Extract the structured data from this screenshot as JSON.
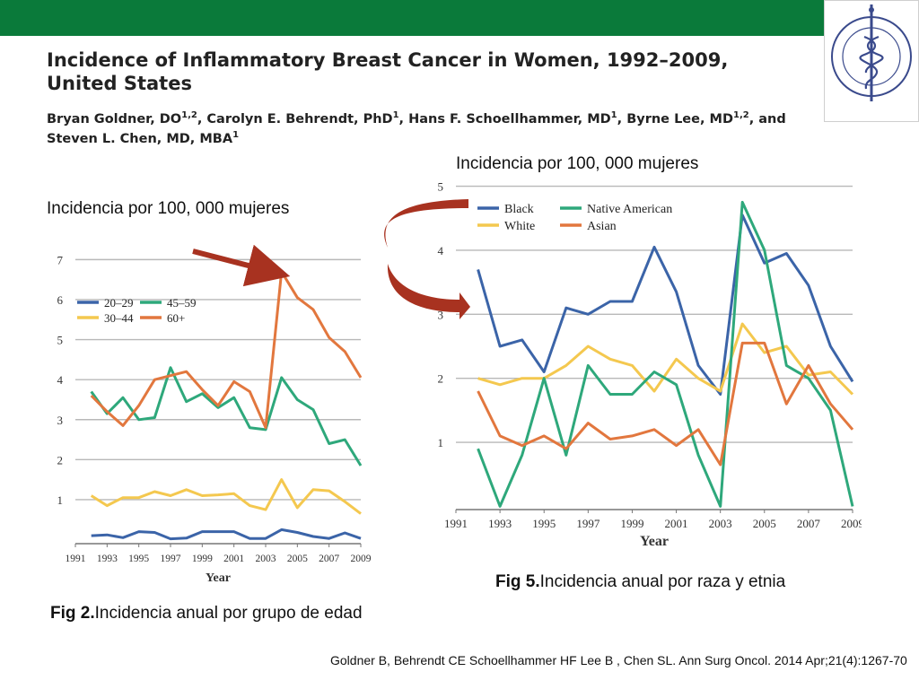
{
  "header": {
    "title_line1": "Incidence of Inflammatory Breast Cancer in Women, 1992–2009,",
    "title_line2": "United States",
    "authors": [
      {
        "name": "Bryan Goldner, DO",
        "sup": "1,2",
        "sep": ", "
      },
      {
        "name": "Carolyn E. Behrendt, PhD",
        "sup": "1",
        "sep": ", "
      },
      {
        "name": "Hans F. Schoellhammer, MD",
        "sup": "1",
        "sep": ", "
      },
      {
        "name": "Byrne Lee, MD",
        "sup": "1,2",
        "sep": ", and "
      },
      {
        "name": "Steven L. Chen, MD, MBA",
        "sup": "1",
        "sep": ""
      }
    ],
    "colors": {
      "top_bar": "#0a7a3a"
    }
  },
  "logo": {
    "icon": "caduceus-seal-icon",
    "text": "INSTITUTO NACIONAL DE CANCEROLOGIA · México ·"
  },
  "left_panel": {
    "ylabel_text": "Incidencia por 100, 000 mujeres",
    "caption_bold": "Fig 2.",
    "caption_text": "Incidencia anual por grupo de edad"
  },
  "right_panel": {
    "ylabel_text": "Incidencia por 100, 000 mujeres",
    "caption_bold": "Fig 5.",
    "caption_text": "Incidencia anual por raza y etnia"
  },
  "reference": "Goldner B, Behrendt CE Schoellhammer HF Lee B , Chen SL. Ann Surg Oncol. 2014 Apr;21(4):1267-70",
  "chart_data": [
    {
      "type": "line",
      "xlabel": "Year",
      "ylabel": "",
      "xticks": [
        1991,
        1993,
        1995,
        1997,
        1999,
        2001,
        2003,
        2005,
        2007,
        2009
      ],
      "yticks": [
        1,
        2,
        3,
        4,
        5,
        6,
        7
      ],
      "xlim": [
        1991,
        2009
      ],
      "ylim": [
        -0.1,
        7.3
      ],
      "grid": true,
      "legend_position": "top-left",
      "x": [
        1992,
        1993,
        1994,
        1995,
        1996,
        1997,
        1998,
        1999,
        2000,
        2001,
        2002,
        2003,
        2004,
        2005,
        2006,
        2007,
        2008,
        2009
      ],
      "series": [
        {
          "name": "20–29",
          "color": "#3b64a8",
          "values": [
            0.1,
            0.12,
            0.05,
            0.2,
            0.18,
            0.02,
            0.04,
            0.2,
            0.2,
            0.2,
            0.03,
            0.03,
            0.25,
            0.18,
            0.08,
            0.03,
            0.17,
            0.03
          ]
        },
        {
          "name": "45–59",
          "color": "#2ea87b",
          "values": [
            3.7,
            3.15,
            3.55,
            3.0,
            3.05,
            4.3,
            3.45,
            3.65,
            3.3,
            3.55,
            2.8,
            2.75,
            4.05,
            3.5,
            3.25,
            2.4,
            2.5,
            1.85
          ]
        },
        {
          "name": "30–44",
          "color": "#f4c84f",
          "values": [
            1.1,
            0.85,
            1.05,
            1.05,
            1.2,
            1.1,
            1.25,
            1.1,
            1.12,
            1.15,
            0.85,
            0.75,
            1.5,
            0.8,
            1.25,
            1.22,
            0.95,
            0.65
          ]
        },
        {
          "name": "60+",
          "color": "#e2773e",
          "values": [
            3.6,
            3.2,
            2.85,
            3.35,
            4.0,
            4.1,
            4.2,
            3.75,
            3.35,
            3.95,
            3.7,
            2.8,
            6.7,
            6.05,
            5.75,
            5.05,
            4.7,
            4.05
          ]
        }
      ]
    },
    {
      "type": "line",
      "xlabel": "Year",
      "ylabel": "",
      "xticks": [
        1991,
        1993,
        1995,
        1997,
        1999,
        2001,
        2003,
        2005,
        2007,
        2009
      ],
      "yticks": [
        1,
        2,
        3,
        4,
        5
      ],
      "xlim": [
        1991,
        2009
      ],
      "ylim": [
        -0.05,
        5.05
      ],
      "grid": true,
      "legend_position": "top",
      "x": [
        1992,
        1993,
        1994,
        1995,
        1996,
        1997,
        1998,
        1999,
        2000,
        2001,
        2002,
        2003,
        2004,
        2005,
        2006,
        2007,
        2008,
        2009
      ],
      "series": [
        {
          "name": "Black",
          "color": "#3b64a8",
          "values": [
            3.7,
            2.5,
            2.6,
            2.1,
            3.1,
            3.0,
            3.2,
            3.2,
            4.05,
            3.35,
            2.2,
            1.75,
            4.55,
            3.8,
            3.95,
            3.45,
            2.5,
            1.95
          ]
        },
        {
          "name": "White",
          "color": "#f4c84f",
          "values": [
            2.0,
            1.9,
            2.0,
            2.0,
            2.2,
            2.5,
            2.3,
            2.2,
            1.8,
            2.3,
            2.0,
            1.8,
            2.85,
            2.4,
            2.5,
            2.05,
            2.1,
            1.75
          ]
        },
        {
          "name": "Native American",
          "color": "#2ea87b",
          "values": [
            0.9,
            0.0,
            0.8,
            2.0,
            0.8,
            2.2,
            1.75,
            1.75,
            2.1,
            1.9,
            0.8,
            0.0,
            4.75,
            4.0,
            2.2,
            2.0,
            1.5,
            0.0
          ]
        },
        {
          "name": "Asian",
          "color": "#e2773e",
          "values": [
            1.8,
            1.1,
            0.95,
            1.1,
            0.9,
            1.3,
            1.05,
            1.1,
            1.2,
            0.95,
            1.2,
            0.65,
            2.55,
            2.55,
            1.6,
            2.2,
            1.6,
            1.2
          ]
        }
      ]
    }
  ]
}
